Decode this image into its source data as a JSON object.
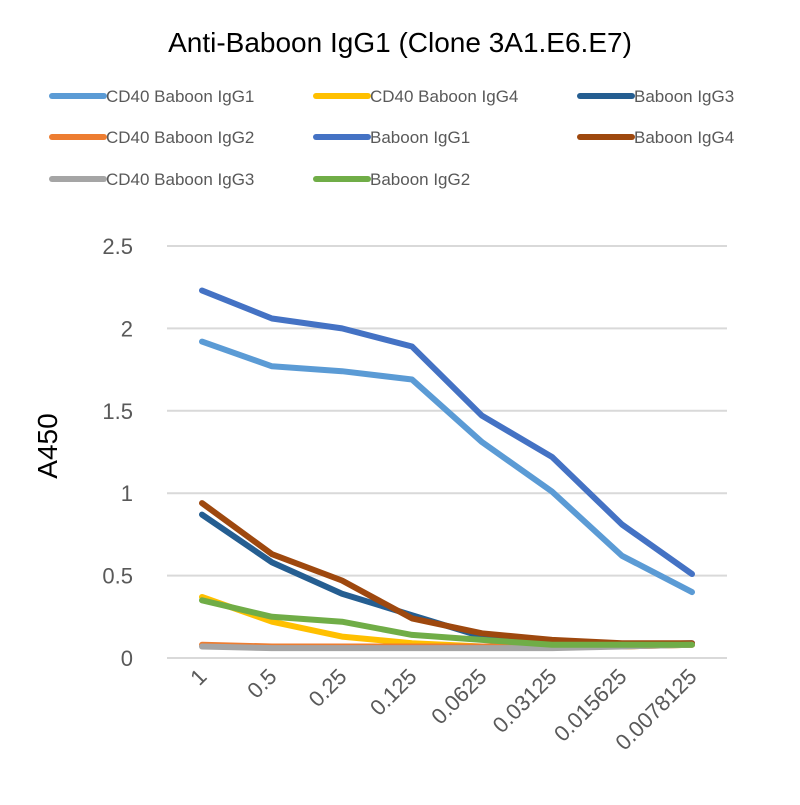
{
  "chart_data": {
    "type": "line",
    "title": "Anti-Baboon IgG1 (Clone 3A1.E6.E7)",
    "xlabel": "",
    "ylabel": "A450",
    "ylim": [
      0,
      2.5
    ],
    "yticks": [
      "0",
      "0.5",
      "1",
      "1.5",
      "2",
      "2.5"
    ],
    "grid": true,
    "legend_position": "top",
    "categories": [
      "1",
      "0.5",
      "0.25",
      "0.125",
      "0.0625",
      "0.03125",
      "0.015625",
      "0.0078125"
    ],
    "series": [
      {
        "name": "CD40 Baboon IgG1",
        "color": "#5b9bd5",
        "values": [
          1.92,
          1.77,
          1.74,
          1.69,
          1.31,
          1.01,
          0.62,
          0.4
        ]
      },
      {
        "name": "CD40 Baboon IgG4",
        "color": "#ffc000",
        "values": [
          0.37,
          0.22,
          0.13,
          0.09,
          0.07,
          0.07,
          0.07,
          0.08
        ]
      },
      {
        "name": "Baboon IgG3",
        "color": "#255e91",
        "values": [
          0.87,
          0.58,
          0.39,
          0.26,
          0.13,
          0.09,
          0.08,
          0.09
        ]
      },
      {
        "name": "CD40 Baboon IgG2",
        "color": "#ed7d31",
        "values": [
          0.08,
          0.07,
          0.07,
          0.07,
          0.07,
          0.07,
          0.07,
          0.08
        ]
      },
      {
        "name": "Baboon IgG1",
        "color": "#4472c4",
        "values": [
          2.23,
          2.06,
          2.0,
          1.89,
          1.47,
          1.22,
          0.81,
          0.51
        ]
      },
      {
        "name": "Baboon IgG4",
        "color": "#9e480e",
        "values": [
          0.94,
          0.63,
          0.47,
          0.24,
          0.15,
          0.11,
          0.09,
          0.09
        ]
      },
      {
        "name": "CD40 Baboon IgG3",
        "color": "#a5a5a5",
        "values": [
          0.07,
          0.06,
          0.06,
          0.06,
          0.06,
          0.06,
          0.07,
          0.08
        ]
      },
      {
        "name": "Baboon IgG2",
        "color": "#70ad47",
        "values": [
          0.35,
          0.25,
          0.22,
          0.14,
          0.11,
          0.08,
          0.08,
          0.08
        ]
      }
    ]
  }
}
